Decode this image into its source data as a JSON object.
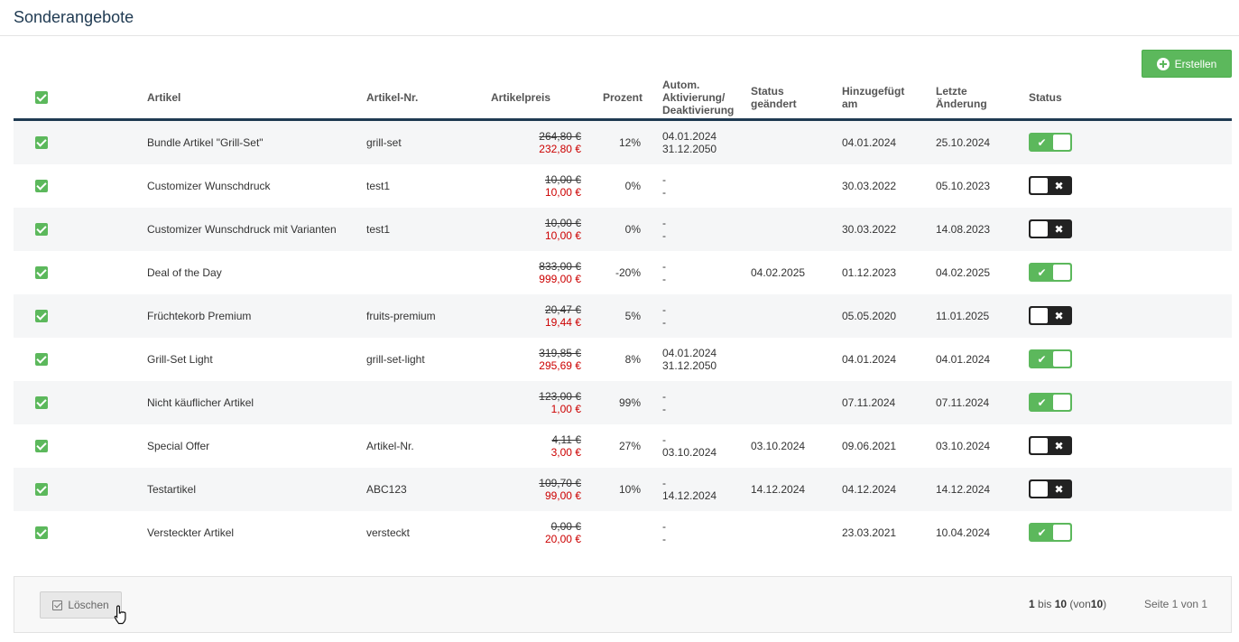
{
  "page_title": "Sonderangebote",
  "create_label": "Erstellen",
  "columns": {
    "artikel": "Artikel",
    "nr": "Artikel-Nr.",
    "preis": "Artikelpreis",
    "prozent": "Prozent",
    "autom_1": "Autom.",
    "autom_2": "Aktivierung/",
    "autom_3": "Deaktivierung",
    "status_geaendert_1": "Status",
    "status_geaendert_2": "geändert",
    "hinzu_1": "Hinzugefügt",
    "hinzu_2": "am",
    "letzte_1": "Letzte",
    "letzte_2": "Änderung",
    "status": "Status"
  },
  "rows": [
    {
      "artikel": "Bundle Artikel \"Grill-Set\"",
      "nr": "grill-set",
      "old_price": "264,80 €",
      "new_price": "232,80 €",
      "prozent": "12%",
      "auto_1": "04.01.2024",
      "auto_2": "31.12.2050",
      "status_changed": "",
      "added": "04.01.2024",
      "last_change": "25.10.2024",
      "active": true
    },
    {
      "artikel": "Customizer Wunschdruck",
      "nr": "test1",
      "old_price": "10,00 €",
      "new_price": "10,00 €",
      "prozent": "0%",
      "auto_1": "-",
      "auto_2": "-",
      "status_changed": "",
      "added": "30.03.2022",
      "last_change": "05.10.2023",
      "active": false
    },
    {
      "artikel": "Customizer Wunschdruck mit Varianten",
      "nr": "test1",
      "old_price": "10,00 €",
      "new_price": "10,00 €",
      "prozent": "0%",
      "auto_1": "-",
      "auto_2": "-",
      "status_changed": "",
      "added": "30.03.2022",
      "last_change": "14.08.2023",
      "active": false
    },
    {
      "artikel": "Deal of the Day",
      "nr": "",
      "old_price": "833,00 €",
      "new_price": "999,00 €",
      "prozent": "-20%",
      "auto_1": "-",
      "auto_2": "-",
      "status_changed": "04.02.2025",
      "added": "01.12.2023",
      "last_change": "04.02.2025",
      "active": true
    },
    {
      "artikel": "Früchtekorb Premium",
      "nr": "fruits-premium",
      "old_price": "20,47 €",
      "new_price": "19,44 €",
      "prozent": "5%",
      "auto_1": "-",
      "auto_2": "-",
      "status_changed": "",
      "added": "05.05.2020",
      "last_change": "11.01.2025",
      "active": false
    },
    {
      "artikel": "Grill-Set Light",
      "nr": "grill-set-light",
      "old_price": "319,85 €",
      "new_price": "295,69 €",
      "prozent": "8%",
      "auto_1": "04.01.2024",
      "auto_2": "31.12.2050",
      "status_changed": "",
      "added": "04.01.2024",
      "last_change": "04.01.2024",
      "active": true
    },
    {
      "artikel": "Nicht käuflicher Artikel",
      "nr": "",
      "old_price": "123,00 €",
      "new_price": "1,00 €",
      "prozent": "99%",
      "auto_1": "-",
      "auto_2": "-",
      "status_changed": "",
      "added": "07.11.2024",
      "last_change": "07.11.2024",
      "active": true
    },
    {
      "artikel": "Special Offer",
      "nr": "Artikel-Nr.",
      "old_price": "4,11 €",
      "new_price": "3,00 €",
      "prozent": "27%",
      "auto_1": "-",
      "auto_2": "03.10.2024",
      "status_changed": "03.10.2024",
      "added": "09.06.2021",
      "last_change": "03.10.2024",
      "active": false
    },
    {
      "artikel": "Testartikel",
      "nr": "ABC123",
      "old_price": "109,70 €",
      "new_price": "99,00 €",
      "prozent": "10%",
      "auto_1": "-",
      "auto_2": "14.12.2024",
      "status_changed": "14.12.2024",
      "added": "04.12.2024",
      "last_change": "14.12.2024",
      "active": false
    },
    {
      "artikel": "Versteckter Artikel",
      "nr": "versteckt",
      "old_price": "0,00 €",
      "new_price": "20,00 €",
      "prozent": "",
      "auto_1": "-",
      "auto_2": "-",
      "status_changed": "",
      "added": "23.03.2021",
      "last_change": "10.04.2024",
      "active": true
    }
  ],
  "footer": {
    "delete_label": "Löschen",
    "range_from": "1",
    "range_bis": "bis",
    "range_to": "10",
    "range_von_open": "(von",
    "range_total": "10",
    "range_close": ")",
    "page_info": "Seite 1 von 1"
  },
  "colors": {
    "accent_green": "#5cb85c",
    "title_navy": "#1f3a52",
    "sale_red": "#cc0000",
    "toggle_off": "#222222"
  },
  "icons": {
    "create": "plus-circle-icon",
    "checkbox": "checkbox-checked-icon",
    "toggle_on": "check-icon",
    "toggle_off": "x-icon",
    "delete": "checkbox-icon",
    "cursor": "hand-pointer-icon"
  }
}
